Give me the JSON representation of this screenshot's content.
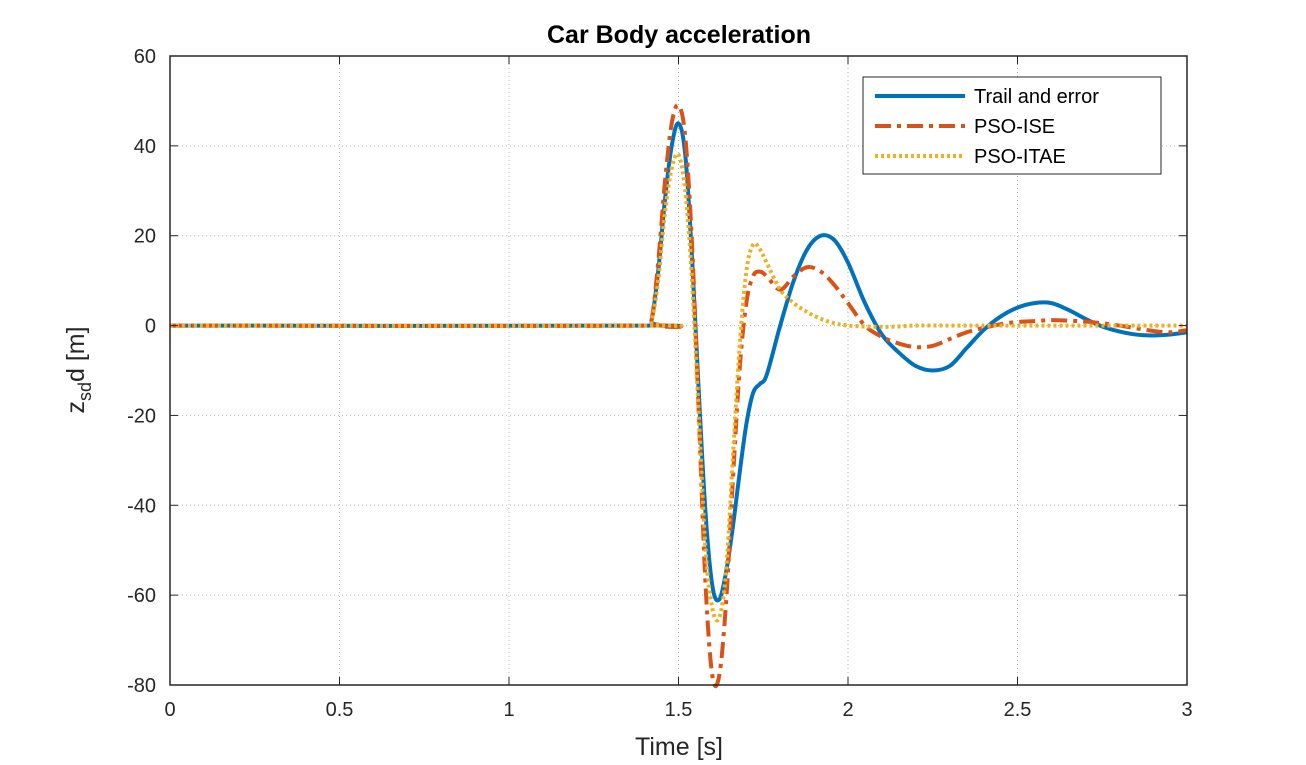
{
  "chart_data": {
    "type": "line",
    "title": "Car Body acceleration",
    "xlabel": "Time [s]",
    "ylabel_parts": [
      "z",
      "sd",
      "d [m]"
    ],
    "xlim": [
      0,
      3
    ],
    "ylim": [
      -80,
      60
    ],
    "xticks": [
      0,
      0.5,
      1,
      1.5,
      2,
      2.5,
      3
    ],
    "xtick_labels": [
      "0",
      "0.5",
      "1",
      "1.5",
      "2",
      "2.5",
      "3"
    ],
    "yticks": [
      60,
      40,
      20,
      0,
      -20,
      -40,
      -60,
      -80
    ],
    "ytick_labels": [
      "60",
      "40",
      "20",
      "0",
      "-20",
      "-40",
      "-60",
      "-80"
    ],
    "grid": true,
    "legend_position": "top-right",
    "series": [
      {
        "name": "Trail and error",
        "color": "#0072bd",
        "style": "solid",
        "x": [
          0,
          1.4,
          1.42,
          1.44,
          1.46,
          1.48,
          1.5,
          1.52,
          1.54,
          1.56,
          1.58,
          1.6,
          1.62,
          1.64,
          1.66,
          1.68,
          1.7,
          1.72,
          1.74,
          1.76,
          1.8,
          1.84,
          1.88,
          1.92,
          1.96,
          2.0,
          2.05,
          2.1,
          2.15,
          2.2,
          2.25,
          2.3,
          2.35,
          2.4,
          2.45,
          2.5,
          2.55,
          2.6,
          2.65,
          2.7,
          2.75,
          2.8,
          2.85,
          2.9,
          2.95,
          3.0
        ],
        "y": [
          0,
          0,
          1,
          12,
          28,
          40,
          45,
          38,
          15,
          -15,
          -42,
          -58,
          -61,
          -55,
          -45,
          -33,
          -22,
          -15,
          -13,
          -11,
          0,
          10,
          17,
          20,
          19,
          14,
          5,
          -2,
          -6,
          -9,
          -10,
          -9,
          -5,
          -1,
          2,
          4,
          5,
          5,
          3.5,
          1.5,
          -0.2,
          -1.3,
          -2,
          -2.2,
          -2,
          -1.5
        ]
      },
      {
        "name": "PSO-ISE",
        "color": "#d95319",
        "style": "dashdot",
        "x": [
          0,
          1.4,
          1.42,
          1.44,
          1.46,
          1.48,
          1.5,
          1.52,
          1.54,
          1.56,
          1.58,
          1.6,
          1.62,
          1.64,
          1.66,
          1.68,
          1.7,
          1.72,
          1.74,
          1.76,
          1.8,
          1.84,
          1.88,
          1.92,
          1.96,
          2.0,
          2.05,
          2.1,
          2.15,
          2.2,
          2.25,
          2.3,
          2.35,
          2.4,
          2.45,
          2.5,
          2.55,
          2.6,
          2.65,
          2.7,
          2.75,
          2.8,
          2.85,
          2.9,
          2.95,
          3.0
        ],
        "y": [
          0,
          0,
          1,
          14,
          32,
          45,
          49,
          42,
          18,
          -20,
          -58,
          -78,
          -78,
          -62,
          -35,
          -10,
          5,
          11,
          12,
          11,
          8,
          11,
          13,
          12,
          9,
          5,
          0,
          -2.5,
          -4,
          -4.8,
          -4.5,
          -3,
          -1.5,
          -0.5,
          0.3,
          0.8,
          1,
          1.2,
          1.1,
          0.9,
          0.5,
          0,
          -0.6,
          -1.2,
          -1.5,
          -1
        ]
      },
      {
        "name": "PSO-ITAE",
        "color": "#edb120",
        "style": "dotted",
        "x": [
          0,
          1.4,
          1.42,
          1.44,
          1.46,
          1.48,
          1.5,
          1.52,
          1.54,
          1.56,
          1.58,
          1.6,
          1.62,
          1.64,
          1.66,
          1.68,
          1.7,
          1.72,
          1.74,
          1.76,
          1.8,
          1.84,
          1.88,
          1.92,
          1.96,
          2.0,
          2.05,
          2.1,
          2.15,
          2.2,
          2.3,
          2.4,
          2.5,
          2.6,
          2.7,
          2.8,
          2.9,
          3.0
        ],
        "y": [
          0,
          0,
          1,
          10,
          25,
          35,
          38,
          30,
          10,
          -20,
          -50,
          -63,
          -65,
          -55,
          -30,
          -5,
          12,
          18,
          17,
          14,
          8,
          5,
          3,
          1.5,
          0.5,
          0,
          -0.2,
          -0.3,
          -0.2,
          0,
          0,
          0,
          0,
          0,
          0,
          0,
          0,
          0
        ]
      }
    ]
  }
}
